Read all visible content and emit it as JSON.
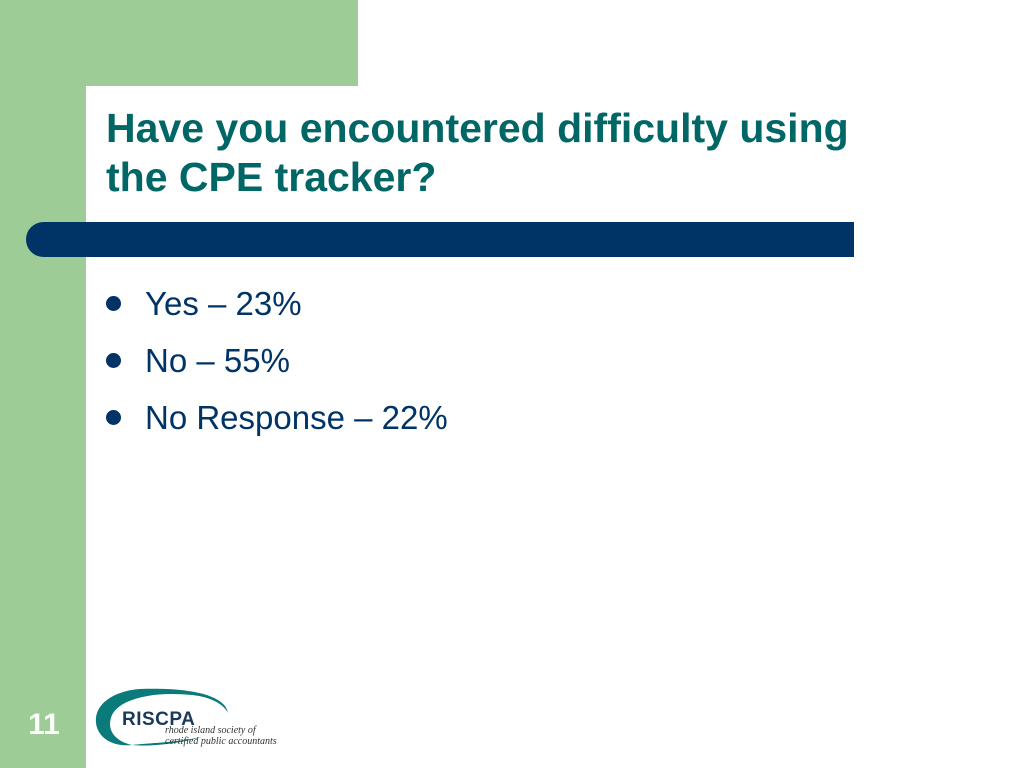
{
  "slide": {
    "title_line1": "Have you encountered difficulty using",
    "title_line2": "the CPE tracker?",
    "bullets": [
      "Yes – 23%",
      "No – 55%",
      "No Response – 22%"
    ],
    "slide_number": "11"
  },
  "logo": {
    "name": "RISCPA",
    "tagline_line1": "rhode island society of",
    "tagline_line2": "certified public accountants"
  },
  "colors": {
    "green_accent": "#9dcc96",
    "title_teal": "#006666",
    "navy": "#003366"
  }
}
